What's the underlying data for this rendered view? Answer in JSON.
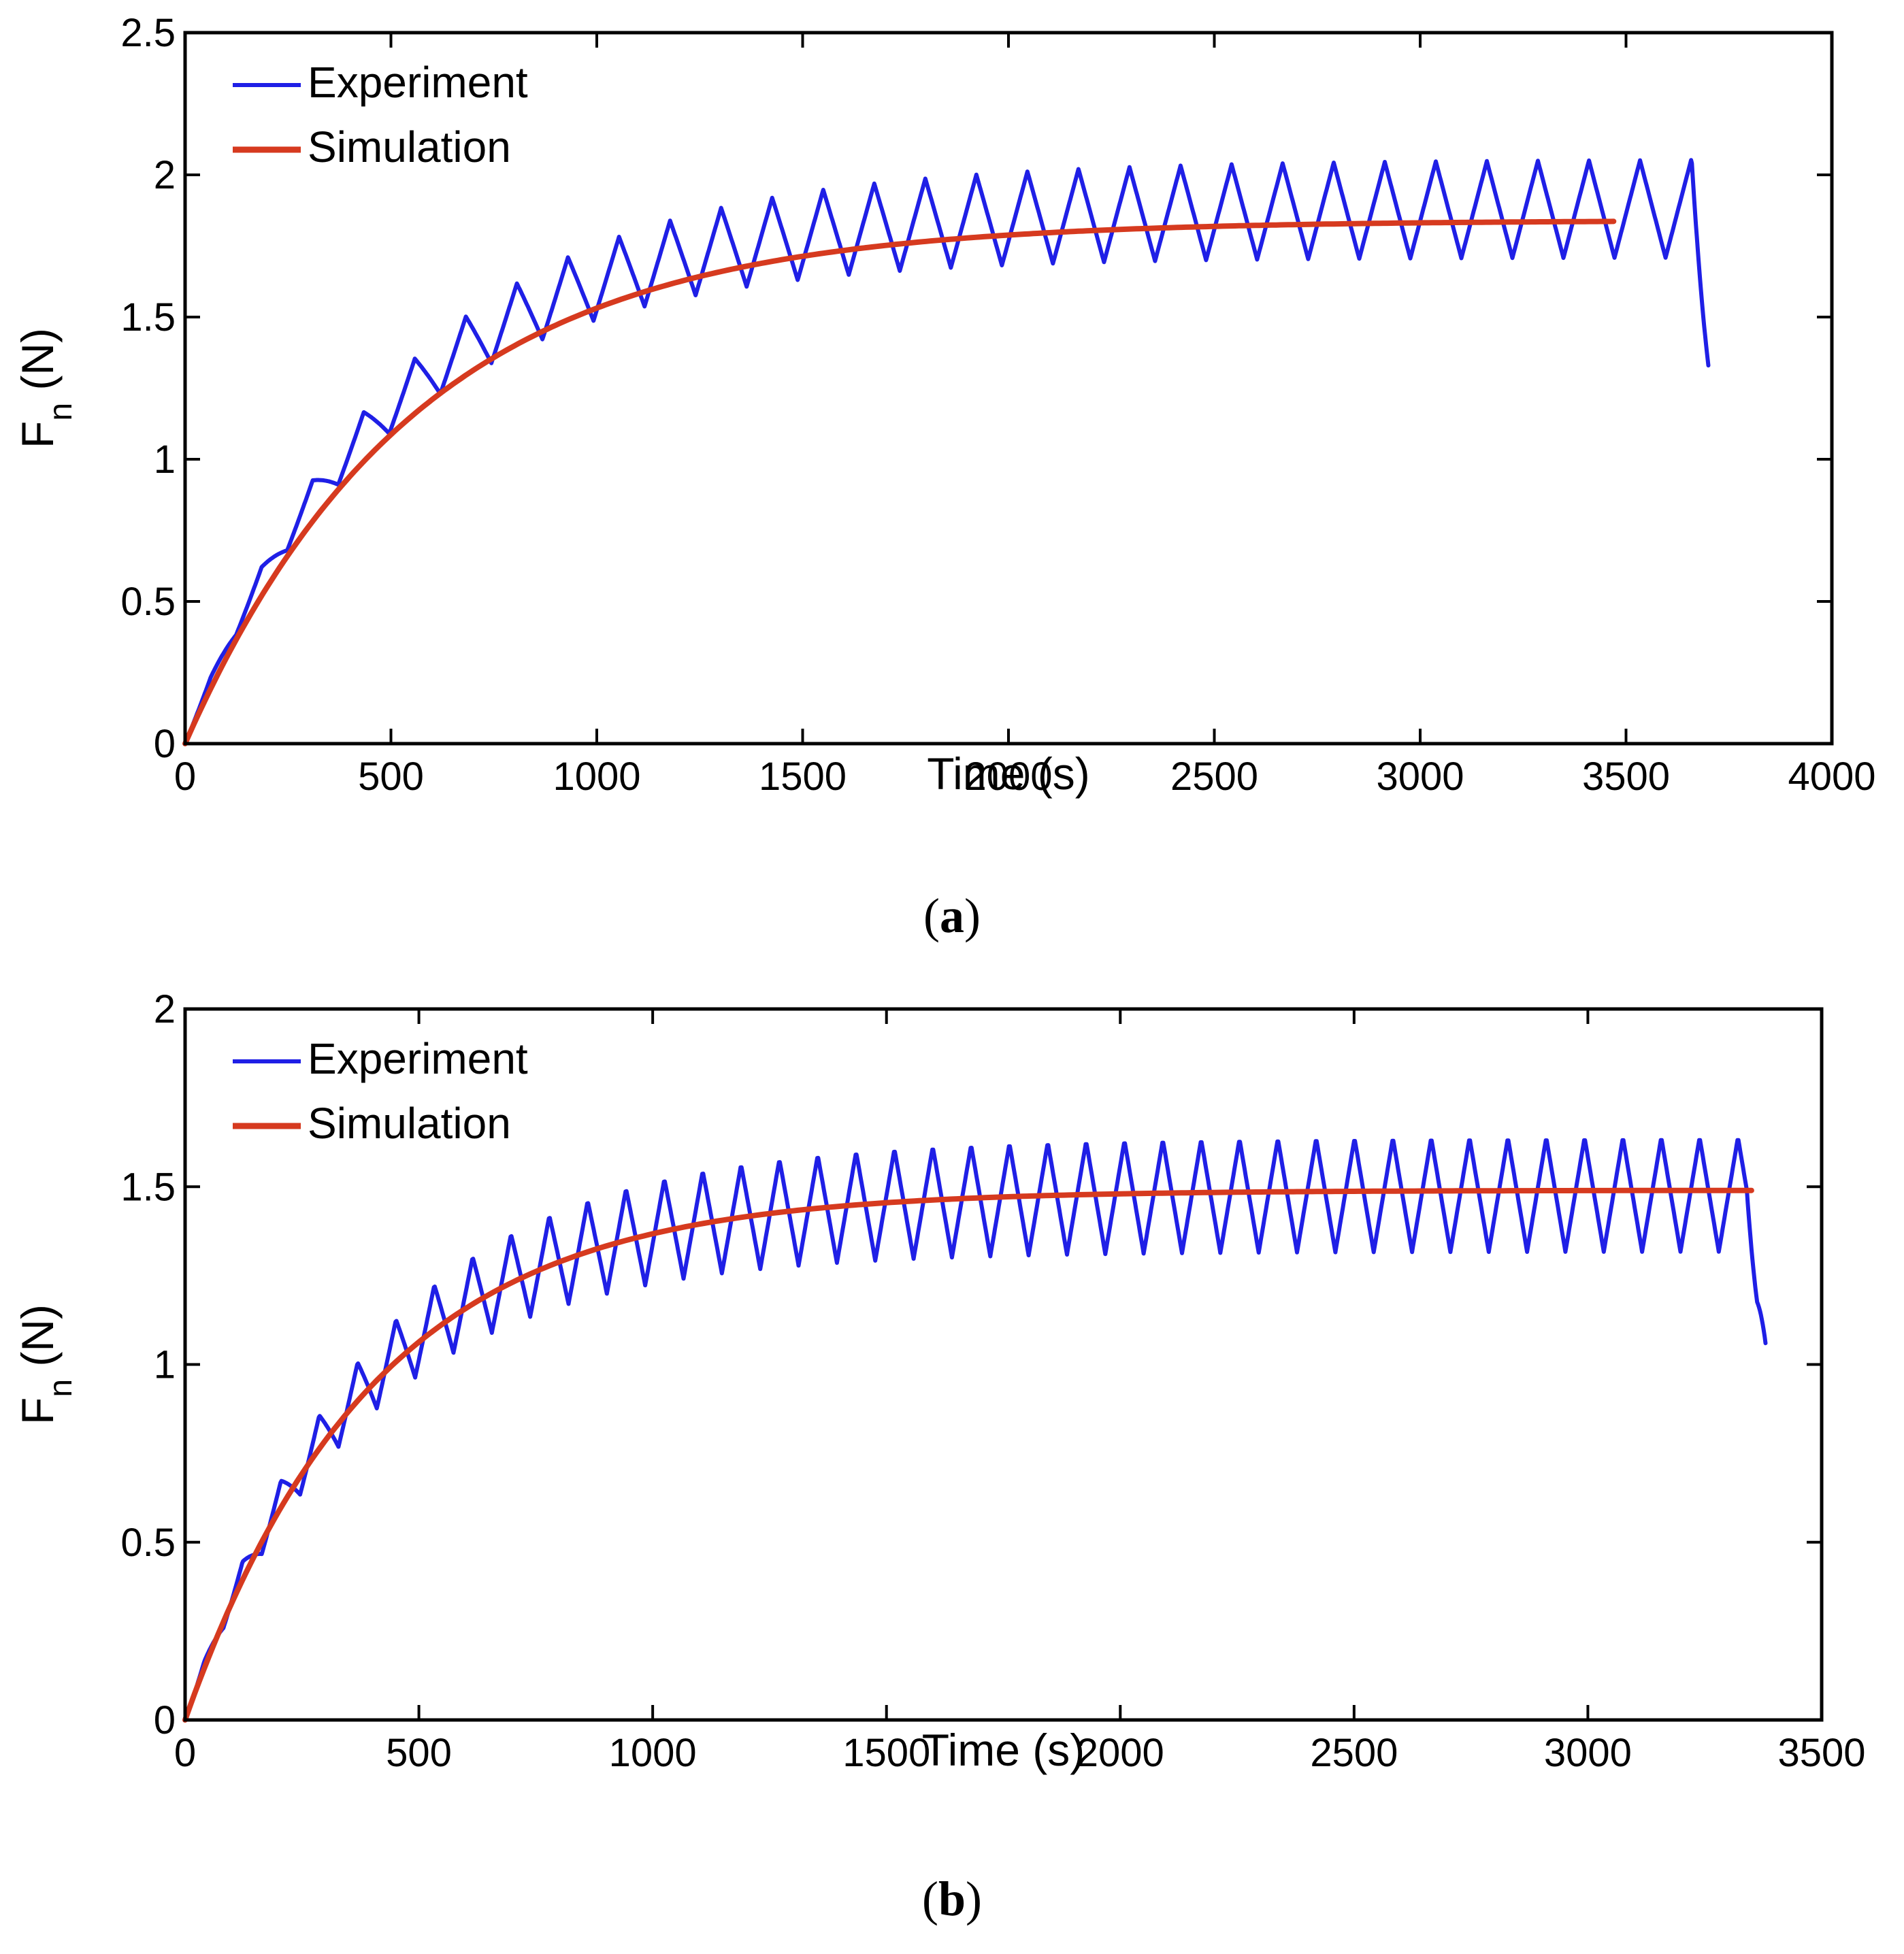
{
  "chart_data": [
    {
      "type": "line",
      "panel": "a",
      "caption_open": "(",
      "caption_letter": "a",
      "caption_close": ")",
      "xlabel": "Time (s)",
      "ylabel_main": "F",
      "ylabel_sub": "n",
      "ylabel_unit": " (N)",
      "xlim": [
        0,
        4000
      ],
      "ylim": [
        0,
        2.5
      ],
      "xticks": [
        0,
        500,
        1000,
        1500,
        2000,
        2500,
        3000,
        3500,
        4000
      ],
      "yticks": [
        0,
        0.5,
        1,
        1.5,
        2,
        2.5
      ],
      "xtick_labels": [
        "0",
        "500",
        "1000",
        "1500",
        "2000",
        "2500",
        "3000",
        "3500",
        "4000"
      ],
      "ytick_labels": [
        "0",
        "0.5",
        "1",
        "1.5",
        "2",
        "2.5"
      ],
      "legend_position": "top-left",
      "series": [
        {
          "name": "Experiment",
          "color": "#1f1fe6",
          "kind": "oscillating",
          "period": 124,
          "x_end": 3700,
          "base_params": {
            "amp": 1.83,
            "tau": 500
          },
          "osc_params": {
            "amp": 0.3,
            "tau": 700
          },
          "end_value": 1.33
        },
        {
          "name": "Simulation",
          "color": "#d63a1f",
          "kind": "smooth",
          "x_end": 3470,
          "params": {
            "amp": 1.84,
            "tau": 560
          }
        }
      ]
    },
    {
      "type": "line",
      "panel": "b",
      "caption_open": "(",
      "caption_letter": "b",
      "caption_close": ")",
      "xlabel": "Time (s)",
      "ylabel_main": "F",
      "ylabel_sub": "n",
      "ylabel_unit": " (N)",
      "xlim": [
        0,
        3500
      ],
      "ylim": [
        0,
        2
      ],
      "xticks": [
        0,
        500,
        1000,
        1500,
        2000,
        2500,
        3000,
        3500
      ],
      "yticks": [
        0,
        0.5,
        1,
        1.5,
        2
      ],
      "xtick_labels": [
        "0",
        "500",
        "1000",
        "1500",
        "2000",
        "2500",
        "3000",
        "3500"
      ],
      "ytick_labels": [
        "0",
        "0.5",
        "1",
        "1.5",
        "2"
      ],
      "legend_position": "top-left",
      "series": [
        {
          "name": "Experiment",
          "color": "#1f1fe6",
          "kind": "oscillating",
          "period": 82,
          "x_end": 3380,
          "base_params": {
            "amp": 1.43,
            "tau": 380
          },
          "osc_params": {
            "amp": 0.28,
            "tau": 450
          },
          "end_value": 1.06
        },
        {
          "name": "Simulation",
          "color": "#d63a1f",
          "kind": "smooth",
          "x_end": 3350,
          "params": {
            "amp": 1.49,
            "tau": 400
          }
        }
      ]
    }
  ]
}
